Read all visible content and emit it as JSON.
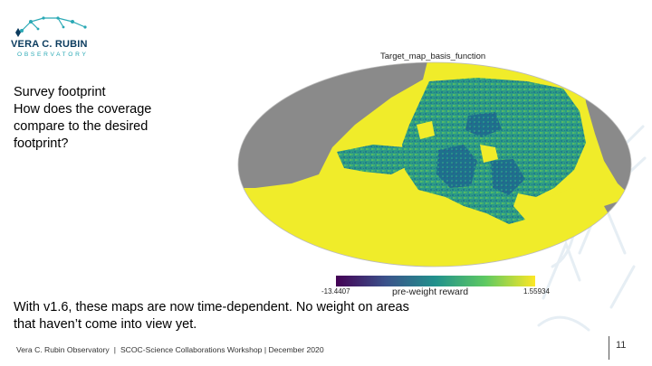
{
  "logo": {
    "line1": "VERA C. RUBIN",
    "line2": "OBSERVATORY"
  },
  "left_text": {
    "lines": [
      "Survey footprint",
      "How does the coverage",
      "compare to the desired",
      "footprint?"
    ]
  },
  "map": {
    "title": "Target_map_basis_function",
    "colors": {
      "masked": "#8c8c8c",
      "low": "#440154",
      "mid": "#21918c",
      "high": "#fde725"
    }
  },
  "colorbar": {
    "min_label": "-13.4407",
    "label": "pre-weight reward",
    "max_label": "1.55934"
  },
  "bottom_text": {
    "lines": [
      "With v1.6, these maps are now time-dependent. No weight on areas",
      "that haven’t come into view yet."
    ]
  },
  "footer": {
    "org": "Vera C. Rubin Observatory",
    "separator": "|",
    "event": "SCOC-Science Collaborations Workshop | December 2020",
    "page_number": "11"
  }
}
